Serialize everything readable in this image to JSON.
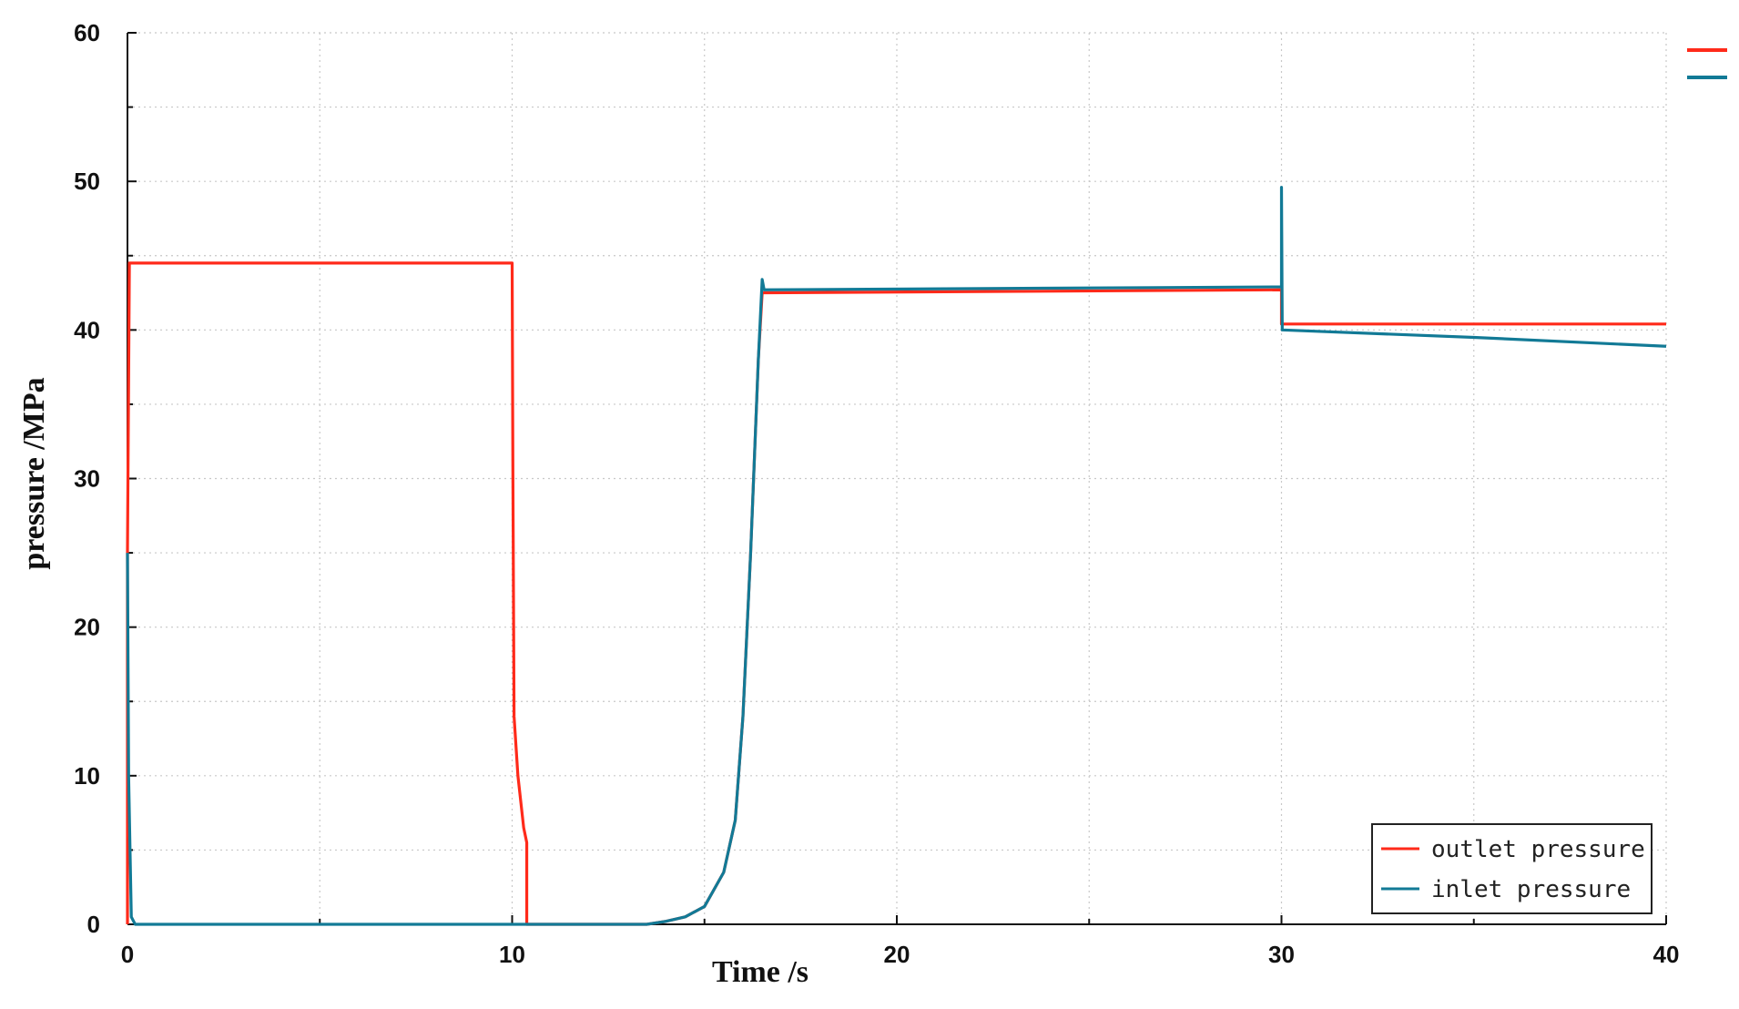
{
  "chart_data": {
    "type": "line",
    "title": "",
    "xlabel": "Time /s",
    "ylabel": "pressure /MPa",
    "xlim": [
      0,
      40
    ],
    "ylim": [
      0,
      60
    ],
    "x_ticks": [
      "0",
      "10",
      "20",
      "30",
      "40"
    ],
    "y_ticks": [
      "0",
      "10",
      "20",
      "30",
      "40",
      "50",
      "60"
    ],
    "grid": true,
    "legend_position": "bottom-right",
    "series": [
      {
        "name": "outlet pressure",
        "color": "#ff2a1a",
        "points": [
          [
            0,
            0
          ],
          [
            0,
            25
          ],
          [
            0.05,
            44.5
          ],
          [
            10.0,
            44.5
          ],
          [
            10.02,
            30
          ],
          [
            10.05,
            14
          ],
          [
            10.15,
            10
          ],
          [
            10.3,
            6.5
          ],
          [
            10.38,
            5.5
          ],
          [
            10.38,
            0
          ],
          [
            13.5,
            0
          ],
          [
            14.0,
            0.2
          ],
          [
            14.5,
            0.5
          ],
          [
            15.0,
            1.2
          ],
          [
            15.5,
            3.5
          ],
          [
            15.8,
            7
          ],
          [
            16.0,
            14
          ],
          [
            16.2,
            25
          ],
          [
            16.4,
            38
          ],
          [
            16.5,
            42.5
          ],
          [
            16.6,
            42.5
          ],
          [
            30.0,
            42.7
          ],
          [
            30.0,
            40.4
          ],
          [
            40.0,
            40.4
          ]
        ]
      },
      {
        "name": "inlet pressure",
        "color": "#127a96",
        "points": [
          [
            0,
            25
          ],
          [
            0.03,
            10
          ],
          [
            0.1,
            0.5
          ],
          [
            0.2,
            0
          ],
          [
            13.5,
            0
          ],
          [
            14.0,
            0.2
          ],
          [
            14.5,
            0.5
          ],
          [
            15.0,
            1.2
          ],
          [
            15.5,
            3.5
          ],
          [
            15.8,
            7
          ],
          [
            16.0,
            14
          ],
          [
            16.2,
            25
          ],
          [
            16.4,
            38
          ],
          [
            16.5,
            43.4
          ],
          [
            16.55,
            42.7
          ],
          [
            30.0,
            42.9
          ],
          [
            30.0,
            49.6
          ],
          [
            30.02,
            40.0
          ],
          [
            35.0,
            39.5
          ],
          [
            40.0,
            38.9
          ]
        ]
      }
    ],
    "top_right_markers": [
      "#ff2a1a",
      "#127a96"
    ]
  }
}
